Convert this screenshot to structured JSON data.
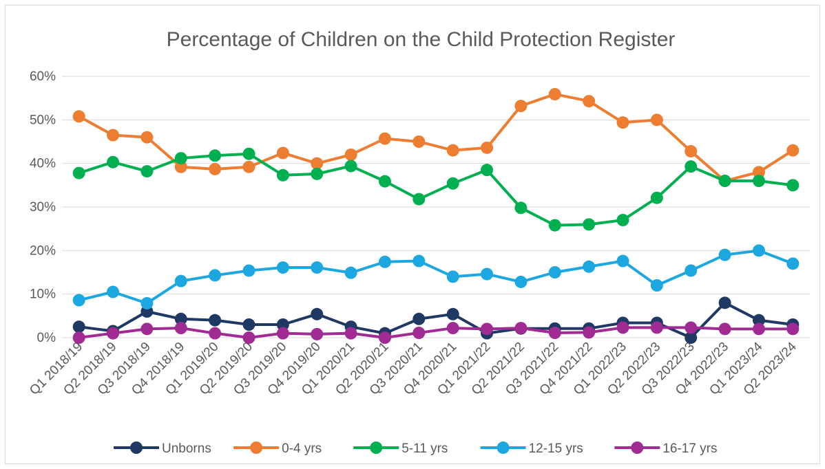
{
  "chart_data": {
    "type": "line",
    "title": "Percentage of Children on the Child Protection Register",
    "xlabel": "",
    "ylabel": "",
    "ylim": [
      0,
      60
    ],
    "y_tick_step": 10,
    "y_tick_format": "percent",
    "grid": true,
    "legend_position": "bottom",
    "categories": [
      "Q1 2018/19",
      "Q2 2018/19",
      "Q3 2018/19",
      "Q4 2018/19",
      "Q1 2019/20",
      "Q2 2019/20",
      "Q3 2019/20",
      "Q4 2019/20",
      "Q1 2020/21",
      "Q2 2020/21",
      "Q3 2020/21",
      "Q4 2020/21",
      "Q1 2021/22",
      "Q2 2021/22",
      "Q3 2021/22",
      "Q4 2021/22",
      "Q1 2022/23",
      "Q2 2022/23",
      "Q3 2022/23",
      "Q4 2022/23",
      "Q1 2023/24",
      "Q2 2023/24"
    ],
    "series": [
      {
        "name": "Unborns",
        "color": "#1f3864",
        "values": [
          2.5,
          1.5,
          6,
          4.3,
          4,
          3,
          3,
          5.4,
          2.5,
          1,
          4.3,
          5.4,
          1,
          2.1,
          2.1,
          2.1,
          3.4,
          3.4,
          0,
          8,
          4,
          3
        ]
      },
      {
        "name": "0-4 yrs",
        "color": "#ed7d31",
        "values": [
          50.8,
          46.5,
          46,
          39.2,
          38.7,
          39.2,
          42.4,
          40,
          42,
          45.7,
          45,
          43,
          43.6,
          53.2,
          55.9,
          54.3,
          49.4,
          50,
          42.8,
          36,
          38,
          43
        ]
      },
      {
        "name": "5-11 yrs",
        "color": "#00b050",
        "values": [
          37.8,
          40.3,
          38.2,
          41.2,
          41.8,
          42.2,
          37.3,
          37.6,
          39.4,
          35.9,
          31.8,
          35.4,
          38.5,
          29.8,
          25.8,
          26,
          27,
          32.1,
          39.3,
          36,
          36,
          35
        ]
      },
      {
        "name": "12-15 yrs",
        "color": "#1ca7e0",
        "values": [
          8.6,
          10.5,
          7.9,
          13,
          14.3,
          15.4,
          16.1,
          16.1,
          14.9,
          17.4,
          17.6,
          14,
          14.6,
          12.8,
          15,
          16.3,
          17.6,
          12,
          15.4,
          19,
          20,
          17
        ]
      },
      {
        "name": "16-17 yrs",
        "color": "#a02b93",
        "values": [
          0,
          1,
          2,
          2.2,
          1,
          0,
          1,
          0.8,
          1,
          0,
          1.1,
          2.2,
          2,
          2.2,
          1.1,
          1.2,
          2.3,
          2.3,
          2.3,
          2,
          2,
          2
        ]
      }
    ]
  }
}
